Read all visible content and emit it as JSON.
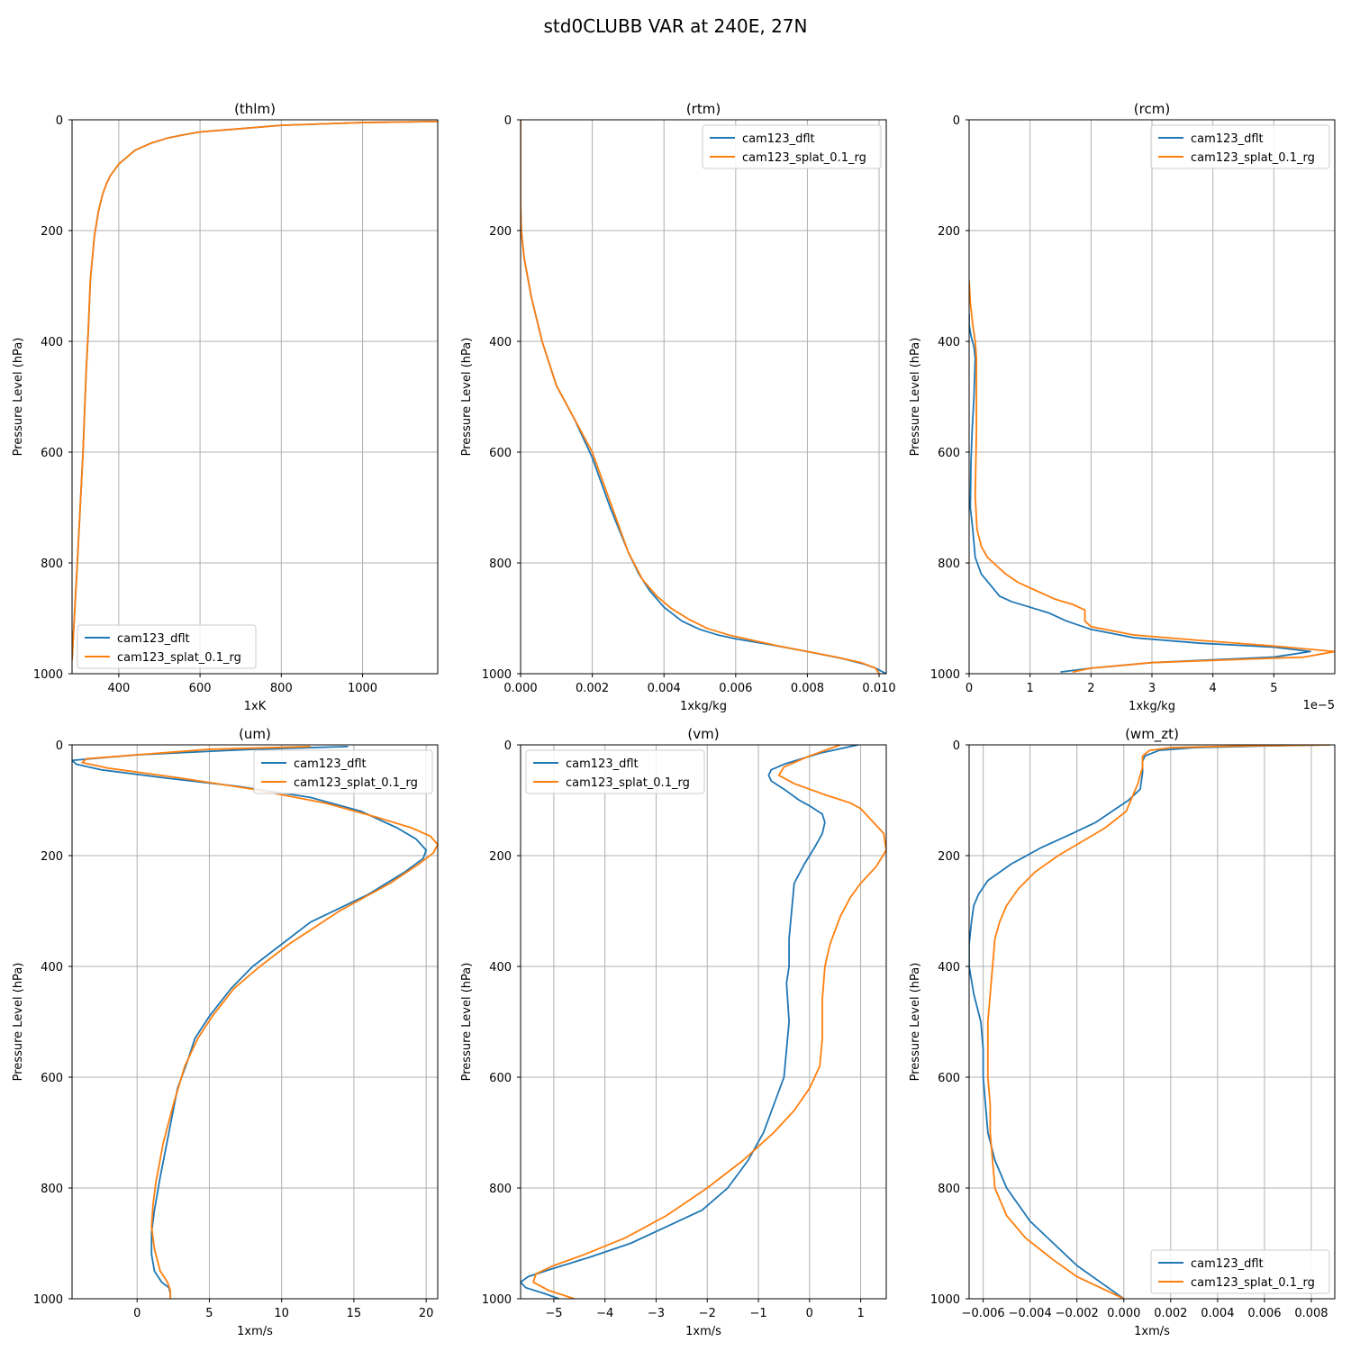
{
  "figure": {
    "suptitle": "std0CLUBB VAR at 240E, 27N",
    "colors": {
      "cam123_dflt": "#1f77b4",
      "cam123_splat_0.1_rg": "#ff7f0e",
      "grid": "#b0b0b0"
    }
  },
  "chart_data": [
    {
      "type": "line",
      "title": "(thlm)",
      "xlabel": "1xK",
      "ylabel": "Pressure Level (hPa)",
      "xlim": [
        285,
        1185
      ],
      "ylim": [
        1000,
        0
      ],
      "xticks": [
        400,
        600,
        800,
        1000
      ],
      "xtick_labels": [
        "400",
        "600",
        "800",
        "1000"
      ],
      "yticks": [
        0,
        200,
        400,
        600,
        800,
        1000
      ],
      "ytick_labels": [
        "0",
        "200",
        "400",
        "600",
        "800",
        "1000"
      ],
      "grid": true,
      "legend": {
        "loc": "lower-left",
        "entries": [
          "cam123_dflt",
          "cam123_splat_0.1_rg"
        ]
      },
      "series": [
        {
          "name": "cam123_dflt",
          "color": "#1f77b4",
          "x": [
            1185,
            1000,
            800,
            600,
            560,
            520,
            480,
            440,
            400,
            380,
            370,
            360,
            350,
            340,
            330,
            325,
            320,
            312,
            305,
            298,
            292,
            285
          ],
          "y": [
            3,
            5,
            10,
            22,
            27,
            33,
            42,
            55,
            80,
            100,
            115,
            135,
            165,
            210,
            290,
            380,
            450,
            600,
            700,
            800,
            880,
            975
          ]
        },
        {
          "name": "cam123_splat_0.1_rg",
          "color": "#ff7f0e",
          "x": [
            1185,
            1000,
            800,
            600,
            560,
            520,
            480,
            440,
            400,
            380,
            370,
            360,
            350,
            340,
            330,
            325,
            320,
            312,
            305,
            298,
            292,
            285
          ],
          "y": [
            3,
            5,
            10,
            22,
            27,
            33,
            42,
            55,
            80,
            100,
            115,
            135,
            165,
            210,
            290,
            380,
            450,
            600,
            700,
            800,
            880,
            975
          ]
        }
      ]
    },
    {
      "type": "line",
      "title": "(rtm)",
      "xlabel": "1xkg/kg",
      "ylabel": "Pressure Level (hPa)",
      "xlim": [
        0,
        0.0102
      ],
      "ylim": [
        1000,
        0
      ],
      "xticks": [
        0,
        0.002,
        0.004,
        0.006,
        0.008,
        0.01
      ],
      "xtick_labels": [
        "0.000",
        "0.002",
        "0.004",
        "0.006",
        "0.008",
        "0.010"
      ],
      "yticks": [
        0,
        200,
        400,
        600,
        800,
        1000
      ],
      "ytick_labels": [
        "0",
        "200",
        "400",
        "600",
        "800",
        "1000"
      ],
      "grid": true,
      "legend": {
        "loc": "upper-right",
        "entries": [
          "cam123_dflt",
          "cam123_splat_0.1_rg"
        ]
      },
      "series": [
        {
          "name": "cam123_dflt",
          "color": "#1f77b4",
          "x": [
            0,
            0,
            2e-05,
            0.0001,
            0.0003,
            0.0006,
            0.001,
            0.0015,
            0.002,
            0.0025,
            0.003,
            0.0033,
            0.0036,
            0.004,
            0.0045,
            0.005,
            0.0055,
            0.006,
            0.007,
            0.008,
            0.009,
            0.0096,
            0.0099,
            0.0102
          ],
          "y": [
            0,
            150,
            200,
            250,
            320,
            400,
            480,
            540,
            610,
            700,
            780,
            820,
            850,
            880,
            905,
            920,
            930,
            937,
            948,
            960,
            973,
            983,
            990,
            1000
          ]
        },
        {
          "name": "cam123_splat_0.1_rg",
          "color": "#ff7f0e",
          "x": [
            0,
            0,
            2e-05,
            0.0001,
            0.0003,
            0.0006,
            0.001,
            0.0015,
            0.002,
            0.0025,
            0.003,
            0.0034,
            0.0038,
            0.0042,
            0.0047,
            0.0052,
            0.0058,
            0.0065,
            0.0072,
            0.008,
            0.0088,
            0.0095,
            0.0099,
            0.01
          ],
          "y": [
            0,
            150,
            200,
            250,
            320,
            400,
            480,
            540,
            600,
            690,
            780,
            830,
            860,
            882,
            902,
            918,
            930,
            940,
            950,
            960,
            970,
            980,
            990,
            1000
          ]
        }
      ]
    },
    {
      "type": "line",
      "title": "(rcm)",
      "xlabel": "1xkg/kg",
      "ylabel": "Pressure Level (hPa)",
      "offset_text": "1e−5",
      "xlim": [
        0,
        6e-05
      ],
      "ylim": [
        1000,
        0
      ],
      "xticks": [
        0,
        1e-05,
        2e-05,
        3e-05,
        4e-05,
        5e-05
      ],
      "xtick_labels": [
        "0",
        "1",
        "2",
        "3",
        "4",
        "5"
      ],
      "yticks": [
        0,
        200,
        400,
        600,
        800,
        1000
      ],
      "ytick_labels": [
        "0",
        "200",
        "400",
        "600",
        "800",
        "1000"
      ],
      "grid": true,
      "legend": {
        "loc": "upper-right",
        "entries": [
          "cam123_dflt",
          "cam123_splat_0.1_rg"
        ]
      },
      "series": [
        {
          "name": "cam123_dflt",
          "color": "#1f77b4",
          "x": [
            0,
            0,
            3e-07,
            8e-07,
            1e-06,
            8e-07,
            5e-07,
            3e-07,
            2e-07,
            6e-07,
            1e-06,
            2e-06,
            3.5e-06,
            5e-06,
            7e-06,
            1e-05,
            1.3e-05,
            1.6e-05,
            2e-05,
            2.7e-05,
            3.8e-05,
            5e-05,
            5.6e-05,
            5e-05,
            3e-05,
            2e-05,
            1.5e-05
          ],
          "y": [
            350,
            370,
            390,
            410,
            430,
            500,
            560,
            620,
            700,
            740,
            790,
            820,
            840,
            860,
            870,
            880,
            890,
            905,
            920,
            935,
            945,
            952,
            960,
            970,
            980,
            990,
            997
          ]
        },
        {
          "name": "cam123_splat_0.1_rg",
          "color": "#ff7f0e",
          "x": [
            0,
            2e-07,
            6e-07,
            1e-06,
            1.2e-06,
            1.2e-06,
            1.2e-06,
            1.1e-06,
            1e-06,
            1.3e-06,
            2e-06,
            3e-06,
            4e-06,
            5e-06,
            6e-06,
            8e-06,
            1.1e-05,
            1.4e-05,
            1.7e-05,
            1.9e-05,
            1.9e-05,
            2e-05,
            2.7e-05,
            3.8e-05,
            5e-05,
            6e-05,
            5.5e-05,
            3e-05,
            2e-05,
            1.7e-05
          ],
          "y": [
            290,
            330,
            370,
            400,
            430,
            500,
            560,
            620,
            680,
            740,
            770,
            790,
            800,
            810,
            820,
            835,
            850,
            865,
            875,
            885,
            905,
            915,
            930,
            940,
            950,
            960,
            970,
            980,
            990,
            997
          ]
        }
      ]
    },
    {
      "type": "line",
      "title": "(um)",
      "xlabel": "1xm/s",
      "ylabel": "Pressure Level (hPa)",
      "xlim": [
        -4.5,
        20.8
      ],
      "ylim": [
        1000,
        0
      ],
      "xticks": [
        0,
        5,
        10,
        15,
        20
      ],
      "xtick_labels": [
        "0",
        "5",
        "10",
        "15",
        "20"
      ],
      "yticks": [
        0,
        200,
        400,
        600,
        800,
        1000
      ],
      "ytick_labels": [
        "0",
        "200",
        "400",
        "600",
        "800",
        "1000"
      ],
      "grid": true,
      "legend": {
        "loc": "upper-right",
        "entries": [
          "cam123_dflt",
          "cam123_splat_0.1_rg"
        ]
      },
      "series": [
        {
          "name": "cam123_dflt",
          "color": "#1f77b4",
          "x": [
            14.6,
            8,
            0,
            -4.5,
            -4.2,
            -2.5,
            2,
            7,
            12,
            15.5,
            18,
            19.3,
            20,
            19.8,
            18.5,
            16,
            12,
            10,
            8,
            6.5,
            5,
            4,
            3.5,
            2.8,
            2.2,
            1.6,
            1.2,
            1,
            1,
            1.2,
            1.7,
            2.2,
            2.3,
            2.3
          ],
          "y": [
            3,
            8,
            18,
            28,
            35,
            45,
            60,
            75,
            95,
            120,
            150,
            170,
            190,
            205,
            230,
            270,
            320,
            360,
            400,
            440,
            490,
            530,
            570,
            620,
            700,
            780,
            840,
            880,
            920,
            950,
            970,
            980,
            990,
            1000
          ]
        },
        {
          "name": "cam123_splat_0.1_rg",
          "color": "#ff7f0e",
          "x": [
            12,
            5,
            -3.5,
            -3.8,
            -2,
            3,
            8,
            13,
            16.5,
            19,
            20.3,
            20.8,
            20.5,
            19.5,
            17.5,
            14,
            10.5,
            8.5,
            6.7,
            5.2,
            4.2,
            3.3,
            2.5,
            1.8,
            1.3,
            1.1,
            1,
            1.2,
            1.6,
            2.1,
            2.3,
            2.3
          ],
          "y": [
            3,
            8,
            25,
            32,
            42,
            60,
            80,
            105,
            130,
            150,
            165,
            180,
            195,
            215,
            250,
            300,
            360,
            400,
            440,
            490,
            530,
            580,
            650,
            720,
            790,
            830,
            870,
            910,
            950,
            970,
            985,
            1000
          ]
        }
      ]
    },
    {
      "type": "line",
      "title": "(vm)",
      "xlabel": "1xm/s",
      "ylabel": "Pressure Level (hPa)",
      "xlim": [
        -5.65,
        1.5
      ],
      "ylim": [
        1000,
        0
      ],
      "xticks": [
        -5,
        -4,
        -3,
        -2,
        -1,
        0,
        1
      ],
      "xtick_labels": [
        "−5",
        "−4",
        "−3",
        "−2",
        "−1",
        "0",
        "1"
      ],
      "yticks": [
        0,
        200,
        400,
        600,
        800,
        1000
      ],
      "ytick_labels": [
        "0",
        "200",
        "400",
        "600",
        "800",
        "1000"
      ],
      "grid": true,
      "legend": {
        "loc": "upper-left",
        "entries": [
          "cam123_dflt",
          "cam123_splat_0.1_rg"
        ]
      },
      "series": [
        {
          "name": "cam123_dflt",
          "color": "#1f77b4",
          "x": [
            0.95,
            0.2,
            -0.5,
            -0.75,
            -0.8,
            -0.75,
            -0.5,
            -0.2,
            0,
            0.25,
            0.3,
            0.25,
            0.1,
            -0.1,
            -0.3,
            -0.35,
            -0.4,
            -0.4,
            -0.45,
            -0.4,
            -0.45,
            -0.5,
            -0.7,
            -0.9,
            -1.2,
            -1.6,
            -2.1,
            -2.8,
            -3.5,
            -4.3,
            -5.0,
            -5.5,
            -5.65,
            -5.55,
            -5.2,
            -4.9
          ],
          "y": [
            0,
            15,
            35,
            45,
            55,
            65,
            80,
            100,
            110,
            125,
            140,
            160,
            185,
            215,
            250,
            300,
            350,
            400,
            430,
            500,
            550,
            600,
            650,
            700,
            750,
            800,
            840,
            870,
            900,
            925,
            945,
            960,
            970,
            980,
            990,
            1000
          ]
        },
        {
          "name": "cam123_splat_0.1_rg",
          "color": "#ff7f0e",
          "x": [
            0.6,
            0,
            -0.5,
            -0.6,
            -0.3,
            0.3,
            0.8,
            1.0,
            1.2,
            1.45,
            1.5,
            1.3,
            1.0,
            0.8,
            0.6,
            0.4,
            0.3,
            0.25,
            0.25,
            0.2,
            0,
            -0.3,
            -0.7,
            -1.3,
            -2.0,
            -2.8,
            -3.6,
            -4.4,
            -5.0,
            -5.35,
            -5.4,
            -5.1,
            -4.6
          ],
          "y": [
            0,
            20,
            40,
            55,
            70,
            90,
            105,
            115,
            135,
            160,
            190,
            220,
            250,
            275,
            310,
            360,
            400,
            460,
            530,
            580,
            620,
            660,
            700,
            750,
            800,
            850,
            890,
            920,
            940,
            955,
            970,
            985,
            1000
          ]
        }
      ]
    },
    {
      "type": "line",
      "title": "(wm_zt)",
      "xlabel": "1xm/s",
      "ylabel": "Pressure Level (hPa)",
      "xlim": [
        -0.0066,
        0.009
      ],
      "ylim": [
        1000,
        0
      ],
      "xticks": [
        -0.006,
        -0.004,
        -0.002,
        0,
        0.002,
        0.004,
        0.006,
        0.008
      ],
      "xtick_labels": [
        "−0.006",
        "−0.004",
        "−0.002",
        "0.000",
        "0.002",
        "0.004",
        "0.006",
        "0.008"
      ],
      "yticks": [
        0,
        200,
        400,
        600,
        800,
        1000
      ],
      "ytick_labels": [
        "0",
        "200",
        "400",
        "600",
        "800",
        "1000"
      ],
      "grid": true,
      "legend": {
        "loc": "lower-right",
        "entries": [
          "cam123_dflt",
          "cam123_splat_0.1_rg"
        ]
      },
      "series": [
        {
          "name": "cam123_dflt",
          "color": "#1f77b4",
          "x": [
            0.0088,
            0.006,
            0.003,
            0.0015,
            0.0009,
            0.0008,
            0.0008,
            0.0007,
            0.0002,
            -0.0005,
            -0.0012,
            -0.0022,
            -0.0035,
            -0.0048,
            -0.0058,
            -0.0062,
            -0.0064,
            -0.0065,
            -0.0066,
            -0.0066,
            -0.0064,
            -0.0061,
            -0.006,
            -0.006,
            -0.0059,
            -0.0058,
            -0.0055,
            -0.005,
            -0.004,
            -0.003,
            -0.002,
            -0.001,
            0
          ],
          "y": [
            0,
            2,
            5,
            10,
            20,
            30,
            50,
            80,
            100,
            120,
            140,
            160,
            185,
            215,
            245,
            270,
            290,
            320,
            360,
            400,
            450,
            500,
            550,
            600,
            650,
            700,
            750,
            800,
            860,
            900,
            940,
            970,
            1000
          ]
        },
        {
          "name": "cam123_splat_0.1_rg",
          "color": "#ff7f0e",
          "x": [
            0.0088,
            0.005,
            0.002,
            0.0011,
            0.0008,
            0.0008,
            0.0006,
            0.0001,
            -0.0008,
            -0.0018,
            -0.0028,
            -0.0038,
            -0.0045,
            -0.005,
            -0.0053,
            -0.0055,
            -0.0056,
            -0.0057,
            -0.0058,
            -0.0058,
            -0.0058,
            -0.0057,
            -0.0057,
            -0.0056,
            -0.0055,
            -0.005,
            -0.0042,
            -0.003,
            -0.002,
            -0.001,
            0
          ],
          "y": [
            0,
            2,
            5,
            10,
            20,
            40,
            70,
            120,
            150,
            175,
            200,
            230,
            260,
            290,
            320,
            350,
            400,
            450,
            500,
            550,
            600,
            650,
            700,
            750,
            800,
            850,
            890,
            930,
            960,
            980,
            1000
          ]
        }
      ]
    }
  ]
}
